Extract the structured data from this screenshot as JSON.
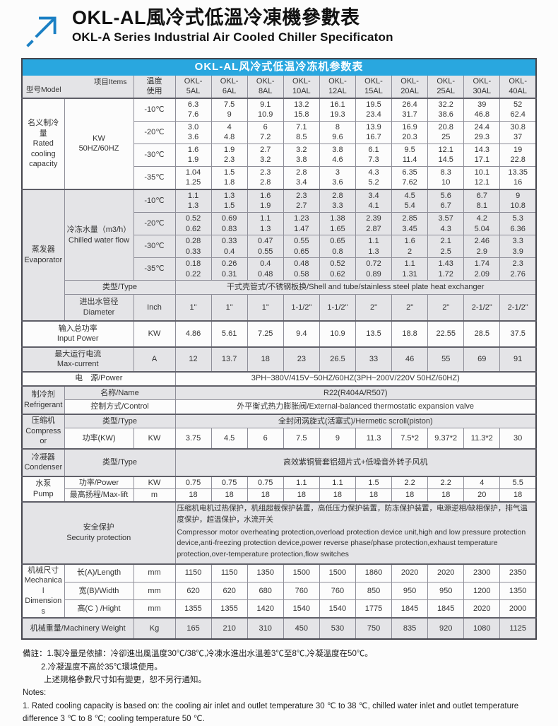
{
  "brand": {
    "title_zh": "OKL-AL風冷式低溫冷凍機參數表",
    "title_en": "OKL-A Series Industrial Air Cooled Chiller Specificaton"
  },
  "colors": {
    "accent_blue": "#29a7df",
    "row_gray": "#e4e4e7",
    "logo_blue": "#1b80c4"
  },
  "table": {
    "title": "OKL-AL风冷式低温冷冻机参数表",
    "corner_model": "型号Model",
    "corner_items": "项目Items",
    "temp_header": "温度\n使用",
    "models": [
      "OKL-\n5AL",
      "OKL-\n6AL",
      "OKL-\n8AL",
      "OKL-\n10AL",
      "OKL-\n12AL",
      "OKL-\n15AL",
      "OKL-\n20AL",
      "OKL-\n25AL",
      "OKL-\n30AL",
      "OKL-\n40AL"
    ]
  },
  "rated": {
    "group_label": "名义制冷量\nRated\ncooling\ncapacity",
    "unit_label": "KW\n50HZ/60HZ",
    "rows": [
      {
        "temp": "-10℃",
        "values": [
          "6.3\n7.6",
          "7.5\n9",
          "9.1\n10.9",
          "13.2\n15.8",
          "16.1\n19.3",
          "19.5\n23.4",
          "26.4\n31.7",
          "32.2\n38.6",
          "39\n46.8",
          "52\n62.4"
        ]
      },
      {
        "temp": "-20℃",
        "values": [
          "3.0\n3.6",
          "4\n4.8",
          "6\n7.2",
          "7.1\n8.5",
          "8\n9.6",
          "13.9\n16.7",
          "16.9\n20.3",
          "20.8\n25",
          "24.4\n29.3",
          "30.8\n37"
        ]
      },
      {
        "temp": "-30℃",
        "values": [
          "1.6\n1.9",
          "1.9\n2.3",
          "2.7\n3.2",
          "3.2\n3.8",
          "3.8\n4.6",
          "6.1\n7.3",
          "9.5\n11.4",
          "12.1\n14.5",
          "14.3\n17.1",
          "19\n22.8"
        ]
      },
      {
        "temp": "-35℃",
        "values": [
          "1.04\n1.25",
          "1.5\n1.8",
          "2.3\n2.8",
          "2.8\n3.4",
          "3\n3.6",
          "4.3\n5.2",
          "6.35\n7.62",
          "8.3\n10",
          "10.1\n12.1",
          "13.35\n16"
        ]
      }
    ]
  },
  "evap": {
    "group_label": "蒸发器\nEvaporator",
    "flow_label": "冷冻水量（m3/h）\nChilled water flow",
    "rows": [
      {
        "temp": "-10℃",
        "values": [
          "1.1\n1.3",
          "1.3\n1.5",
          "1.6\n1.9",
          "2.3\n2.7",
          "2.8\n3.3",
          "3.4\n4.1",
          "4.5\n5.4",
          "5.6\n6.7",
          "6.7\n8.1",
          "9\n10.8"
        ]
      },
      {
        "temp": "-20℃",
        "values": [
          "0.52\n0.62",
          "0.69\n0.83",
          "1.1\n1.3",
          "1.23\n1.47",
          "1.38\n1.65",
          "2.39\n2.87",
          "2.85\n3.45",
          "3.57\n4.3",
          "4.2\n5.04",
          "5.3\n6.36"
        ]
      },
      {
        "temp": "-30℃",
        "values": [
          "0.28\n0.33",
          "0.33\n0.4",
          "0.47\n0.55",
          "0.55\n0.65",
          "0.65\n0.8",
          "1.1\n1.3",
          "1.6\n2",
          "2.1\n2.5",
          "2.46\n2.9",
          "3.3\n3.9"
        ]
      },
      {
        "temp": "-35℃",
        "values": [
          "0.18\n0.22",
          "0.26\n0.31",
          "0.4\n0.48",
          "0.48\n0.58",
          "0.52\n0.62",
          "0.72\n0.89",
          "1.1\n1.31",
          "1.43\n1.72",
          "1.74\n2.09",
          "2.3\n2.76"
        ]
      }
    ],
    "type_label": "类型/Type",
    "type_value": "干式壳管式/不锈钢板换/Shell and tube/stainless steel plate heat exchanger",
    "diameter": {
      "label": "进出水管径\nDiameter",
      "unit": "Inch",
      "values": [
        "1\"",
        "1\"",
        "1\"",
        "1-1/2\"",
        "1-1/2\"",
        "2\"",
        "2\"",
        "2\"",
        "2-1/2\"",
        "2-1/2\""
      ]
    }
  },
  "input_power": {
    "label": "输入总功率\nInput Power",
    "unit": "KW",
    "values": [
      "4.86",
      "5.61",
      "7.25",
      "9.4",
      "10.9",
      "13.5",
      "18.8",
      "22.55",
      "28.5",
      "37.5"
    ]
  },
  "max_current": {
    "label": "最大运行电流\nMax-current",
    "unit": "A",
    "values": [
      "12",
      "13.7",
      "18",
      "23",
      "26.5",
      "33",
      "46",
      "55",
      "69",
      "91"
    ]
  },
  "power_supply": {
    "label": "电　源/Power",
    "value": "3PH~380V/415V~50HZ/60HZ(3PH~200V/220V  50HZ/60HZ)"
  },
  "refrigerant": {
    "group_label": "制冷剂\nRefrigerant",
    "name_label": "名称/Name",
    "name_value": "R22(R404A/R507)",
    "control_label": "控制方式/Control",
    "control_value": "外平衡式热力膨胀阀/External-balanced thermostatic expansion valve"
  },
  "compressor": {
    "group_label": "压缩机\nCompressor",
    "type_label": "类型/Type",
    "type_value": "全封闭涡旋式(活塞式)/Hermetic scroll(piston)",
    "power_label": "功率(KW)",
    "power_unit": "KW",
    "power_values": [
      "3.75",
      "4.5",
      "6",
      "7.5",
      "9",
      "11.3",
      "7.5*2",
      "9.37*2",
      "11.3*2",
      "30"
    ]
  },
  "condenser": {
    "group_label": "冷凝器\nCondenser",
    "type_label": "类型/Type",
    "type_value": "高效紫铜管套铝翅片式+低噪音外转子风机"
  },
  "pump": {
    "group_label": "水泵\nPump",
    "power_label": "功率/Power",
    "power_unit": "KW",
    "power_values": [
      "0.75",
      "0.75",
      "0.75",
      "1.1",
      "1.1",
      "1.5",
      "2.2",
      "2.2",
      "4",
      "5.5"
    ],
    "lift_label": "最高扬程/Max-lift",
    "lift_unit": "m",
    "lift_values": [
      "18",
      "18",
      "18",
      "18",
      "18",
      "18",
      "18",
      "18",
      "20",
      "18"
    ]
  },
  "security": {
    "label": "安全保护\nSecurity protection",
    "zh": "压缩机电机过热保护，机组超载保护装置，高低压力保护装置，防冻保护装置，电源逆相/缺相保护，排气温度保护，超温保护，水流开关",
    "en": " Compressor motor overheating protection,overload protection device unit,high and low pressure protection device,anti-freezing protection device,power reverse phase/phase protection,exhaust temperature protection,over-temperature protection,flow switches"
  },
  "mechanical": {
    "group_label": "机械尺寸\nMechanical\nDimensions",
    "length_label": "长(A)/Length",
    "length_unit": "mm",
    "length_values": [
      "1150",
      "1150",
      "1350",
      "1500",
      "1500",
      "1860",
      "2020",
      "2020",
      "2300",
      "2350"
    ],
    "width_label": "宽(B)/Width",
    "width_unit": "mm",
    "width_values": [
      "620",
      "620",
      "680",
      "760",
      "760",
      "850",
      "950",
      "950",
      "1200",
      "1350"
    ],
    "height_label": "高(C ) /Hight",
    "height_unit": "mm",
    "height_values": [
      "1355",
      "1355",
      "1420",
      "1540",
      "1540",
      "1775",
      "1845",
      "1845",
      "2020",
      "2000"
    ]
  },
  "weight": {
    "label": "机械重量/Machinery Weight",
    "unit": "Kg",
    "values": [
      "165",
      "210",
      "310",
      "450",
      "530",
      "750",
      "835",
      "920",
      "1080",
      "1125"
    ]
  },
  "notes": {
    "zh1": "備註：1.製冷量是依據：冷卻進出風溫度30℃/38℃,冷凍水進出水溫差3℃至8℃,冷凝溫度在50℃。",
    "zh2": "2.冷凝溫度不高於35℃環境使用。",
    "zh3": "上述規格參數尺寸如有變更，恕不另行通知。",
    "en_title": "Notes:",
    "en1": "1. Rated cooling capacity is based on: the cooling air inlet and outlet temperature 30 ℃ to 38 ℃, chilled water inlet and outlet temperature difference 3 ℃ to 8 ℃; cooling temperature 50 ℃."
  }
}
